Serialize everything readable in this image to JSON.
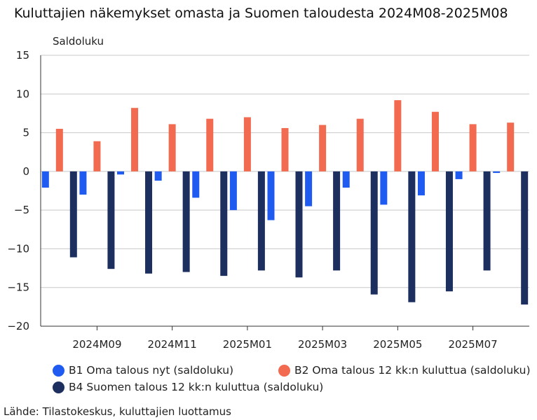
{
  "title": "Kuluttajien näkemykset omasta ja Suomen taloudesta 2024M08-2025M08",
  "source": "Lähde: Tilastokeskus, kuluttajien luottamus",
  "colors": {
    "b1": "#1f5bf0",
    "b2": "#f26a4f",
    "b4": "#1c2f5e",
    "grid": "#c8c8c8"
  },
  "chart_data": {
    "type": "bar",
    "ylabel": "Saldoluku",
    "ylim": [
      -20,
      15
    ],
    "yticks": [
      15,
      10,
      5,
      0,
      -5,
      -10,
      -15,
      -20
    ],
    "grid": true,
    "legend_position": "bottom",
    "categories": [
      "2024M08",
      "2024M09",
      "2024M10",
      "2024M11",
      "2024M12",
      "2025M01",
      "2025M02",
      "2025M03",
      "2025M04",
      "2025M05",
      "2025M06",
      "2025M07",
      "2025M08"
    ],
    "xtick_labels": [
      "2024M09",
      "2024M11",
      "2025M01",
      "2025M03",
      "2025M05",
      "2025M07"
    ],
    "series": [
      {
        "name": "B1 Oma talous nyt (saldoluku)",
        "color_key": "b1",
        "values": [
          -2.1,
          -3.0,
          -0.4,
          -1.2,
          -3.4,
          -5.0,
          -6.3,
          -4.5,
          -2.1,
          -4.3,
          -3.1,
          -1.0,
          -0.2
        ]
      },
      {
        "name": "B2 Oma talous 12 kk:n kuluttua (saldoluku)",
        "color_key": "b2",
        "values": [
          5.5,
          3.9,
          8.2,
          6.1,
          6.8,
          7.0,
          5.6,
          6.0,
          6.8,
          9.2,
          7.7,
          6.1,
          6.3
        ]
      },
      {
        "name": "B4 Suomen talous 12 kk:n kuluttua (saldoluku)",
        "color_key": "b4",
        "values": [
          -11.1,
          -12.6,
          -13.2,
          -13.0,
          -13.5,
          -12.8,
          -13.7,
          -12.8,
          -15.9,
          -16.9,
          -15.5,
          -12.8,
          -17.2
        ]
      }
    ]
  }
}
